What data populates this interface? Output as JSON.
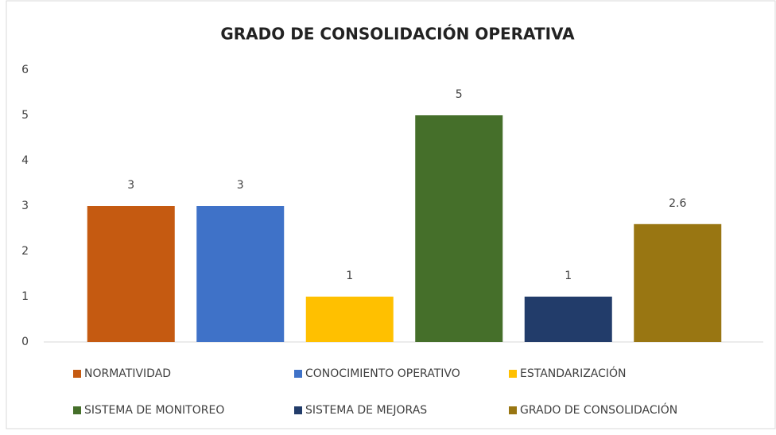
{
  "chart_data": {
    "type": "bar",
    "title": "GRADO DE CONSOLIDACIÓN OPERATIVA",
    "categories": [
      null
    ],
    "series": [
      {
        "name": "NORMATIVIDAD",
        "color": "#c55a11",
        "values": [
          3
        ]
      },
      {
        "name": "CONOCIMIENTO OPERATIVO",
        "color": "#3f72c8",
        "values": [
          3
        ]
      },
      {
        "name": "ESTANDARIZACIÓN",
        "color": "#ffc000",
        "values": [
          1
        ]
      },
      {
        "name": "SISTEMA DE MONITOREO",
        "color": "#456f2a",
        "values": [
          5
        ]
      },
      {
        "name": "SISTEMA DE MEJORAS",
        "color": "#223c6a",
        "values": [
          1
        ]
      },
      {
        "name": "GRADO DE CONSOLIDACIÓN",
        "color": "#997612",
        "values": [
          2.6
        ]
      }
    ],
    "ylim": [
      0,
      6
    ],
    "yticks": [
      0,
      1,
      2,
      3,
      4,
      5,
      6
    ],
    "grid": false,
    "legend": "bottom"
  }
}
